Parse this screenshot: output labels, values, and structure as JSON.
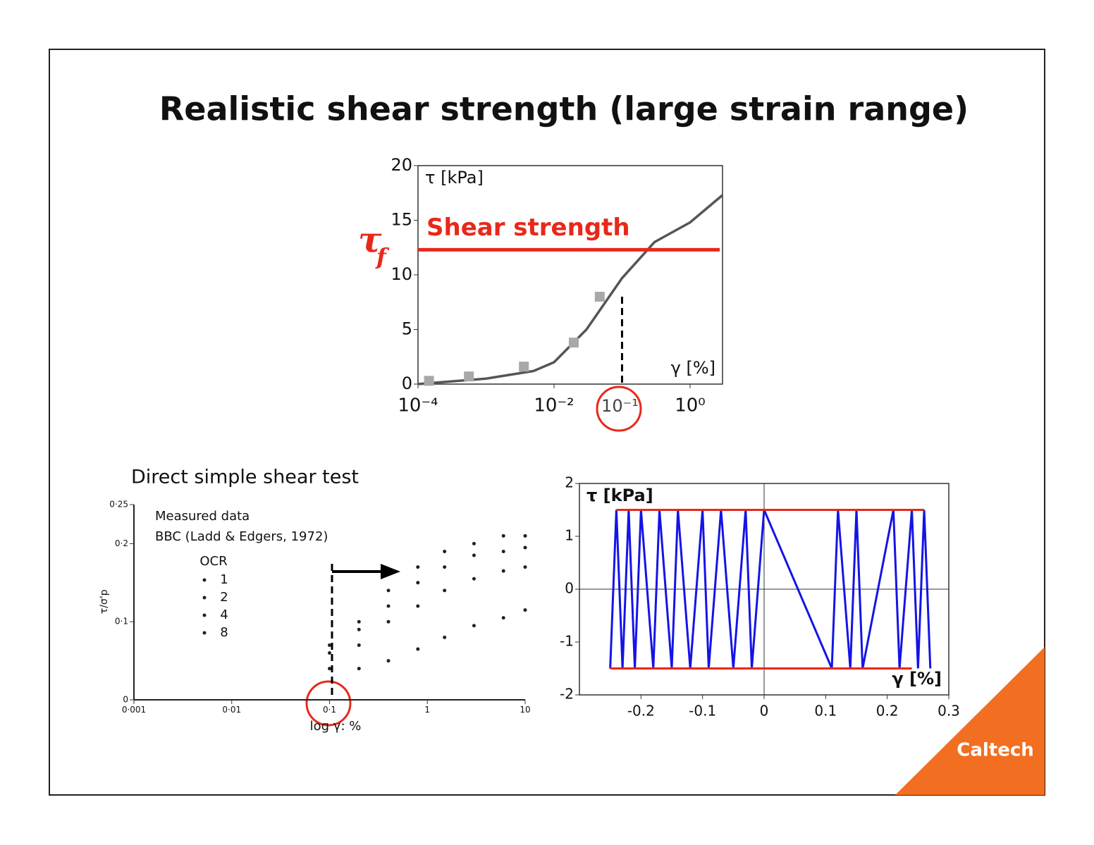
{
  "slide": {
    "title": "Realistic shear strength (large strain range)",
    "logo": "Caltech"
  },
  "chart_data": [
    {
      "type": "line",
      "xscale": "log",
      "frame": "box",
      "ylabel": "τ [kPa]",
      "xlabel": "γ [%]",
      "xlim": [
        0.0001,
        3
      ],
      "xticks": [
        {
          "value": 0.0001,
          "label": "10⁻⁴"
        },
        {
          "value": 0.01,
          "label": "10⁻²"
        },
        {
          "value": 1,
          "label": "10⁰"
        }
      ],
      "ylim": [
        0,
        20
      ],
      "yticks": [
        0,
        5,
        10,
        15,
        20
      ],
      "series": [
        {
          "type": "line",
          "color": "#555555",
          "x": [
            0.0001,
            0.001,
            0.005,
            0.01,
            0.03,
            0.1,
            0.3,
            1,
            3
          ],
          "values": [
            0,
            0.5,
            1.2,
            2,
            5,
            9.7,
            13,
            14.8,
            17.3
          ]
        },
        {
          "type": "scatter",
          "marker": "square",
          "color": "#a8a8a8",
          "x": [
            0.000145,
            0.00056,
            0.0036,
            0.0195,
            0.047
          ],
          "values": [
            0.3,
            0.7,
            1.6,
            3.8,
            8
          ]
        }
      ],
      "strength_line": {
        "value": 12.3,
        "label": "Shear strength",
        "symbol": "τ",
        "symbol_sub": "f",
        "color": "#e8281a"
      },
      "marker_line": {
        "x": 0.1,
        "y": 8,
        "label": "10⁻¹"
      }
    },
    {
      "type": "scatter",
      "xscale": "log",
      "frame": "axes",
      "title": "Direct simple shear test",
      "notes": [
        "Measured data",
        "BBC (Ladd & Edgers, 1972)"
      ],
      "ylabel": "τ/σ'p",
      "xlabel": "log γ: %",
      "legend_title": "OCR",
      "xlim": [
        0.001,
        10
      ],
      "xticks": [
        {
          "value": 0.001,
          "label": "0·001"
        },
        {
          "value": 0.01,
          "label": "0·01"
        },
        {
          "value": 0.1,
          "label": "0·1"
        },
        1,
        10
      ],
      "ylim": [
        0,
        0.25
      ],
      "yticks": [
        0,
        {
          "value": 0.1,
          "label": "0·1"
        },
        {
          "value": 0.2,
          "label": "0·2"
        },
        {
          "value": 0.25,
          "label": "0·25"
        }
      ],
      "series": [
        {
          "name": "1",
          "color": "#222222",
          "x": [
            0.1,
            0.2,
            0.4,
            0.8,
            1.5,
            3,
            6,
            10
          ],
          "values": [
            0.07,
            0.1,
            0.14,
            0.17,
            0.19,
            0.2,
            0.21,
            0.21
          ]
        },
        {
          "name": "2",
          "color": "#222222",
          "x": [
            0.1,
            0.2,
            0.4,
            0.8,
            1.5,
            3,
            6,
            10
          ],
          "values": [
            0.06,
            0.09,
            0.12,
            0.15,
            0.17,
            0.185,
            0.19,
            0.195
          ]
        },
        {
          "name": "4",
          "color": "#222222",
          "x": [
            0.1,
            0.2,
            0.4,
            0.8,
            1.5,
            3,
            6,
            10
          ],
          "values": [
            0.04,
            0.07,
            0.1,
            0.12,
            0.14,
            0.155,
            0.165,
            0.17
          ]
        },
        {
          "name": "8",
          "color": "#222222",
          "x": [
            0.2,
            0.4,
            0.8,
            1.5,
            3,
            6,
            10
          ],
          "values": [
            0.04,
            0.05,
            0.065,
            0.08,
            0.095,
            0.105,
            0.115
          ]
        }
      ]
    },
    {
      "type": "line",
      "frame": "box",
      "zero_lines": true,
      "ylabel": "τ [kPa]",
      "xlabel": "γ [%]",
      "xlim": [
        -0.3,
        0.3
      ],
      "xticks": [
        -0.2,
        -0.1,
        0,
        0.1,
        0.2,
        0.3
      ],
      "ylim": [
        -2,
        2
      ],
      "yticks": [
        -2,
        -1,
        0,
        1,
        2
      ],
      "series": [
        {
          "type": "line",
          "color": "#1414e6",
          "x": [
            -0.25,
            -0.24,
            -0.23,
            -0.22,
            -0.21,
            -0.2,
            -0.18,
            -0.17,
            -0.15,
            -0.14,
            -0.12,
            -0.1,
            -0.09,
            -0.07,
            -0.05,
            -0.03,
            -0.02,
            0.0,
            0.11,
            0.12,
            0.14,
            0.15,
            0.16,
            0.21,
            0.22,
            0.24,
            0.25,
            0.26,
            0.27
          ],
          "values": [
            -1.5,
            1.5,
            -1.5,
            1.5,
            -1.5,
            1.5,
            -1.5,
            1.5,
            -1.5,
            1.5,
            -1.5,
            1.5,
            -1.5,
            1.5,
            -1.5,
            1.5,
            -1.5,
            1.5,
            -1.5,
            1.5,
            -1.5,
            1.5,
            -1.5,
            1.5,
            -1.5,
            1.5,
            -1.5,
            1.5,
            -1.5
          ]
        },
        {
          "type": "line",
          "color": "#e8281a",
          "x": [
            -0.24,
            0.26
          ],
          "values": [
            1.5,
            1.5
          ]
        },
        {
          "type": "line",
          "color": "#e8281a",
          "x": [
            -0.25,
            0.24
          ],
          "values": [
            -1.5,
            -1.5
          ]
        }
      ]
    }
  ]
}
